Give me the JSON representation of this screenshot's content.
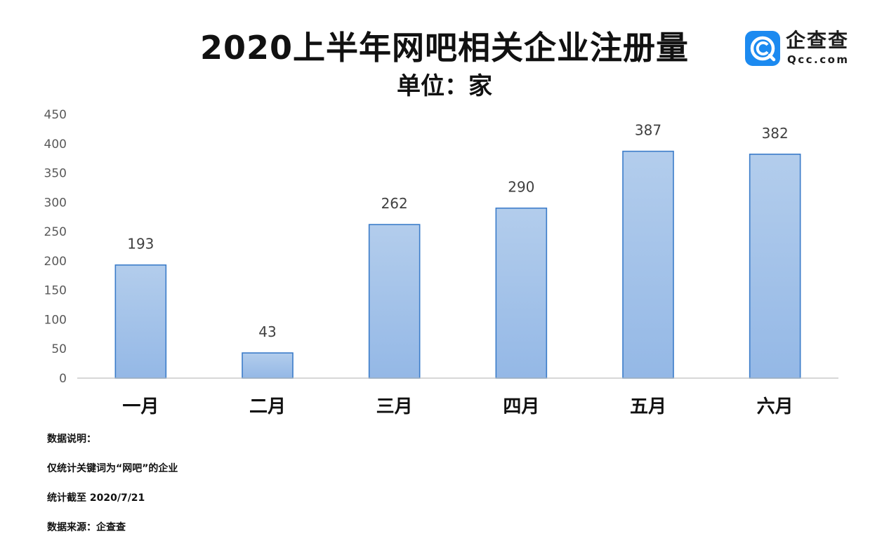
{
  "title": "2020上半年网吧相关企业注册量",
  "subtitle": "单位：家",
  "logo": {
    "name": "企查查",
    "domain": "Qcc.com",
    "icon": "qcc-logo-icon"
  },
  "colors": {
    "bar_fill_top": "#b3cdec",
    "bar_fill_bottom": "#94b8e6",
    "bar_stroke": "#3b7cc9",
    "axis": "#bfbfbf",
    "tick_text": "#595959",
    "label_text": "#404040"
  },
  "chart_data": {
    "type": "bar",
    "categories": [
      "一月",
      "二月",
      "三月",
      "四月",
      "五月",
      "六月"
    ],
    "values": [
      193,
      43,
      262,
      290,
      387,
      382
    ],
    "data_labels": [
      "193",
      "43",
      "262",
      "290",
      "387",
      "382"
    ],
    "ylim": [
      0,
      450
    ],
    "yticks": [
      "0",
      "50",
      "100",
      "150",
      "200",
      "250",
      "300",
      "350",
      "400",
      "450"
    ],
    "grid": false,
    "legend": "none"
  },
  "notes": [
    "数据说明：",
    "仅统计关键词为“网吧”的企业",
    "统计截至 2020/7/21",
    "数据来源：企查查"
  ]
}
